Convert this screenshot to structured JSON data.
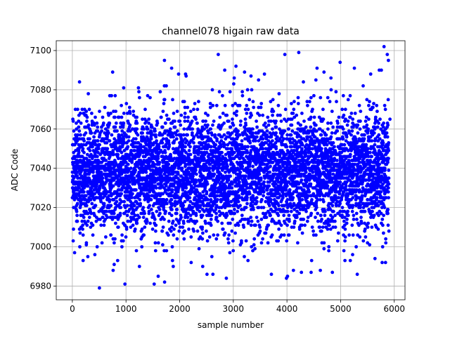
{
  "chart_data": {
    "type": "scatter",
    "title": "channel078 higain raw data",
    "xlabel": "sample number",
    "ylabel": "ADC Code",
    "xlim": [
      -300,
      6200
    ],
    "ylim": [
      6973,
      7105
    ],
    "x_ticks": [
      0,
      1000,
      2000,
      3000,
      4000,
      5000,
      6000
    ],
    "y_ticks": [
      6980,
      7000,
      7020,
      7040,
      7060,
      7080,
      7100
    ],
    "grid": true,
    "marker_color": "#0000ff",
    "n_points": 5900,
    "distribution": {
      "center": 7038,
      "typical_range": [
        7010,
        7070
      ],
      "min": 6979,
      "max": 7102
    },
    "series": [
      {
        "x": [
          505,
          1525,
          1720,
          1850,
          1980,
          2720,
          2840,
          3210,
          3580,
          3960,
          4220,
          4560,
          4990,
          5810,
          5870,
          3990,
          4270,
          980,
          1600,
          2120,
          2430,
          2620,
          2870,
          3050,
          3330,
          3710,
          4120,
          4450,
          4690,
          5310,
          5420,
          5560,
          5720,
          200,
          420,
          760,
          1250,
          1880,
          2510,
          3470,
          4010,
          4820,
          5180,
          5640,
          5760,
          5920
        ],
        "y": [
          6979,
          6981,
          6982,
          7091,
          7088,
          7098,
          7090,
          7089,
          7088,
          7098,
          7099,
          7091,
          7094,
          7102,
          7098,
          6984,
          6987,
          6981,
          6985,
          7087,
          6990,
          6986,
          6984,
          7092,
          7087,
          6986,
          6988,
          6987,
          7089,
          6986,
          7082,
          7088,
          7090,
          6993,
          6996,
          6988,
          6990,
          6990,
          6986,
          7085,
          6985,
          7086,
          6993,
          6994,
          7090,
          7065
        ]
      }
    ]
  }
}
